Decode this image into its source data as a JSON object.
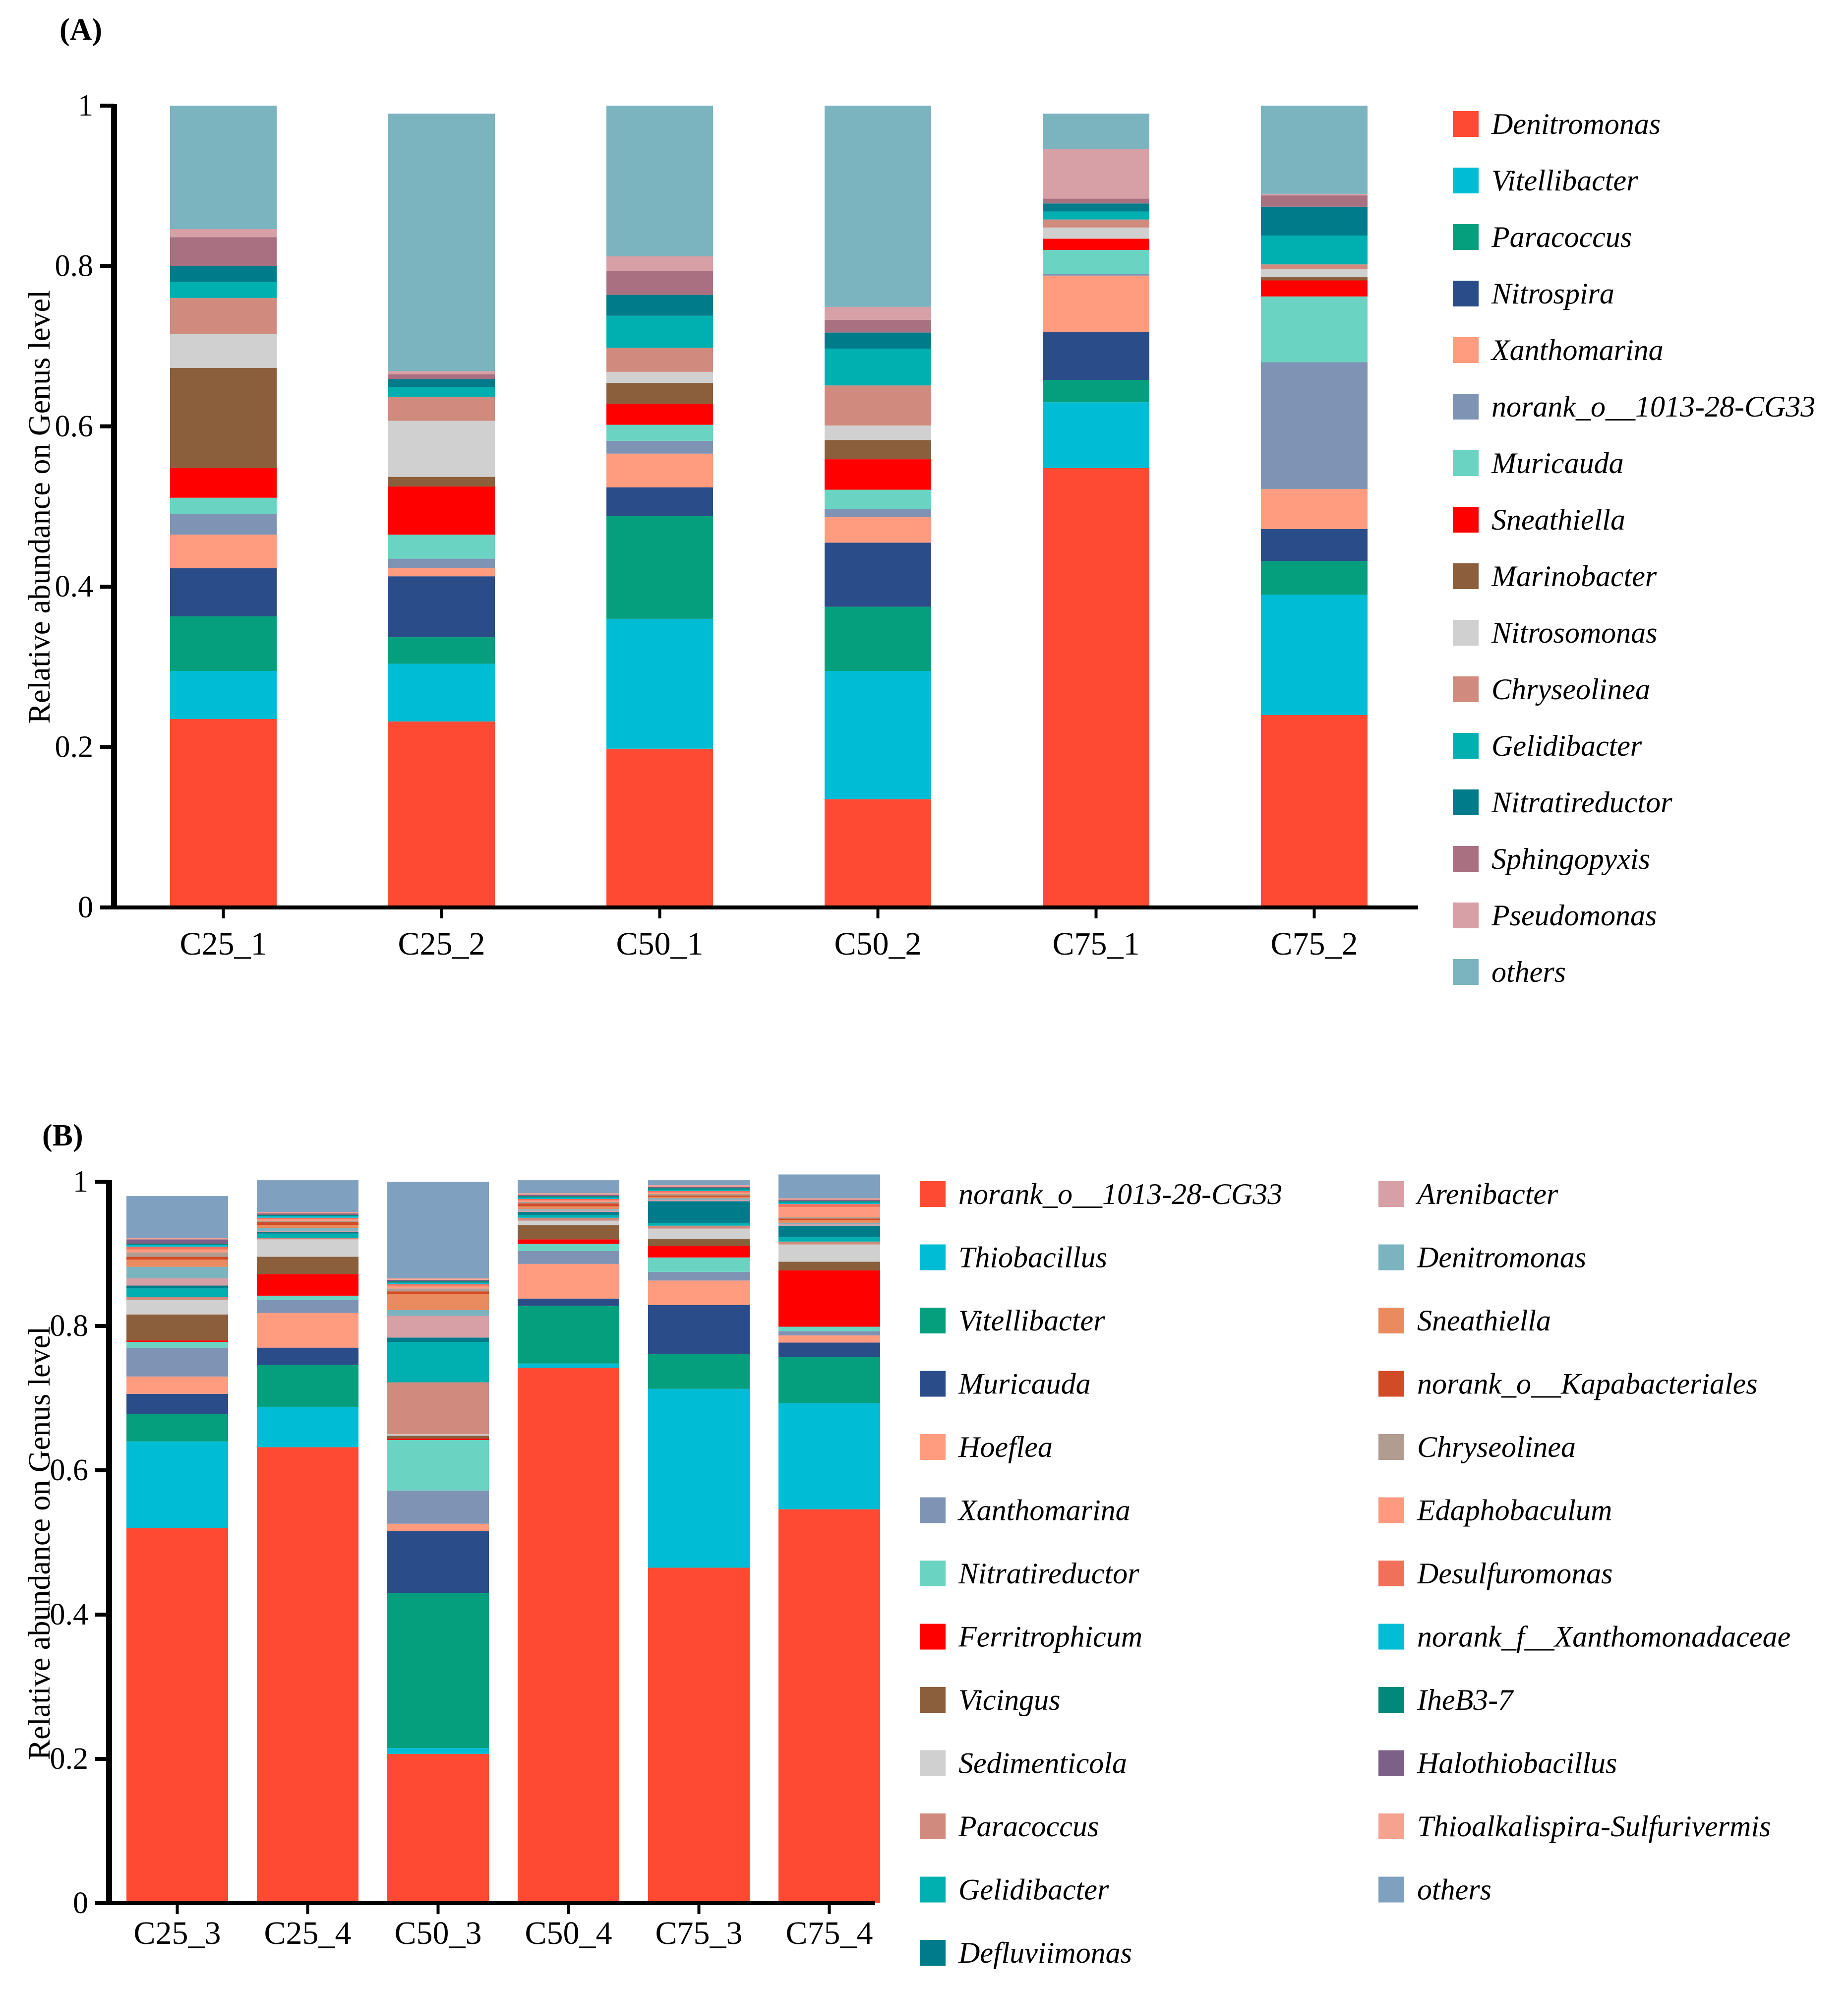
{
  "figure": {
    "panel_a_label": "(A)",
    "panel_b_label": "(B)"
  },
  "chart_data": [
    {
      "type": "bar",
      "stacked": true,
      "panel": "(A)",
      "ylabel": "Relative abundance on Genus level",
      "xlabel": "",
      "ylim": [
        0,
        1
      ],
      "yticks": [
        {
          "value": 0,
          "label": "0"
        },
        {
          "value": 0.2,
          "label": "0.2"
        },
        {
          "value": 0.4,
          "label": "0.4"
        },
        {
          "value": 0.6,
          "label": "0.6"
        },
        {
          "value": 0.8,
          "label": "0.8"
        },
        {
          "value": 1,
          "label": "1"
        }
      ],
      "categories": [
        "C25_1",
        "C25_2",
        "C50_1",
        "C50_2",
        "C75_1",
        "C75_2"
      ],
      "series": [
        {
          "name": "Denitromonas",
          "color": "#FF4A33",
          "values": [
            0.235,
            0.232,
            0.198,
            0.135,
            0.548,
            0.24
          ]
        },
        {
          "name": "Vitellibacter",
          "color": "#00BCD4",
          "values": [
            0.06,
            0.072,
            0.162,
            0.16,
            0.082,
            0.15
          ]
        },
        {
          "name": "Paracoccus",
          "color": "#069F7D",
          "values": [
            0.068,
            0.033,
            0.128,
            0.08,
            0.028,
            0.042
          ]
        },
        {
          "name": "Nitrospira",
          "color": "#2A4D89",
          "values": [
            0.06,
            0.076,
            0.036,
            0.08,
            0.06,
            0.04
          ]
        },
        {
          "name": "Xanthomarina",
          "color": "#FF9C80",
          "values": [
            0.042,
            0.01,
            0.042,
            0.032,
            0.07,
            0.05
          ]
        },
        {
          "name": "norank_o__1013-28-CG33",
          "color": "#7F93B5",
          "values": [
            0.026,
            0.012,
            0.016,
            0.01,
            0.002,
            0.158
          ]
        },
        {
          "name": "Muricauda",
          "color": "#6AD3C2",
          "values": [
            0.02,
            0.03,
            0.02,
            0.024,
            0.03,
            0.082
          ]
        },
        {
          "name": "Sneathiella",
          "color": "#FF0000",
          "values": [
            0.037,
            0.06,
            0.026,
            0.038,
            0.014,
            0.02
          ]
        },
        {
          "name": "Marinobacter",
          "color": "#8B5E3C",
          "values": [
            0.125,
            0.012,
            0.026,
            0.024,
            0.0,
            0.004
          ]
        },
        {
          "name": "Nitrosomonas",
          "color": "#D0D0D0",
          "values": [
            0.042,
            0.07,
            0.014,
            0.018,
            0.014,
            0.01
          ]
        },
        {
          "name": "Chryseolinea",
          "color": "#D08A7E",
          "values": [
            0.045,
            0.03,
            0.03,
            0.05,
            0.01,
            0.006
          ]
        },
        {
          "name": "Gelidibacter",
          "color": "#00AFB0",
          "values": [
            0.02,
            0.012,
            0.04,
            0.046,
            0.01,
            0.036
          ]
        },
        {
          "name": "Nitratireductor",
          "color": "#007B89",
          "values": [
            0.02,
            0.01,
            0.026,
            0.02,
            0.01,
            0.036
          ]
        },
        {
          "name": "Sphingopyxis",
          "color": "#A87080",
          "values": [
            0.036,
            0.006,
            0.03,
            0.016,
            0.006,
            0.014
          ]
        },
        {
          "name": "Pseudomonas",
          "color": "#D79FA6",
          "values": [
            0.01,
            0.004,
            0.018,
            0.016,
            0.062,
            0.002
          ]
        },
        {
          "name": "others",
          "color": "#7BB3BF",
          "values": [
            0.154,
            0.321,
            0.188,
            0.251,
            0.044,
            0.11
          ]
        }
      ]
    },
    {
      "type": "bar",
      "stacked": true,
      "panel": "(B)",
      "ylabel": "Relative abundance on Genus level",
      "xlabel": "",
      "ylim": [
        0,
        1
      ],
      "yticks": [
        {
          "value": 0,
          "label": "0"
        },
        {
          "value": 0.2,
          "label": "0.2"
        },
        {
          "value": 0.4,
          "label": "0.4"
        },
        {
          "value": 0.6,
          "label": "0.6"
        },
        {
          "value": 0.8,
          "label": "0.8"
        },
        {
          "value": 1,
          "label": "1"
        }
      ],
      "categories": [
        "C25_3",
        "C25_4",
        "C50_3",
        "C50_4",
        "C75_3",
        "C75_4"
      ],
      "series": [
        {
          "name": "norank_o__1013-28-CG33",
          "color": "#FF4A33",
          "values": [
            0.52,
            0.632,
            0.207,
            0.742,
            0.465,
            0.546
          ]
        },
        {
          "name": "Thiobacillus",
          "color": "#00BCD4",
          "values": [
            0.12,
            0.056,
            0.008,
            0.006,
            0.248,
            0.147
          ]
        },
        {
          "name": "Vitellibacter",
          "color": "#069F7D",
          "values": [
            0.038,
            0.058,
            0.215,
            0.08,
            0.048,
            0.064
          ]
        },
        {
          "name": "Muricauda",
          "color": "#2A4D89",
          "values": [
            0.028,
            0.024,
            0.086,
            0.01,
            0.068,
            0.02
          ]
        },
        {
          "name": "Hoeflea",
          "color": "#FF9C80",
          "values": [
            0.024,
            0.048,
            0.01,
            0.048,
            0.034,
            0.01
          ]
        },
        {
          "name": "Xanthomarina",
          "color": "#7F93B5",
          "values": [
            0.04,
            0.018,
            0.046,
            0.018,
            0.012,
            0.006
          ]
        },
        {
          "name": "Nitratireductor",
          "color": "#6AD3C2",
          "values": [
            0.008,
            0.006,
            0.07,
            0.01,
            0.02,
            0.006
          ]
        },
        {
          "name": "Ferritrophicum",
          "color": "#FF0000",
          "values": [
            0.002,
            0.03,
            0.002,
            0.006,
            0.016,
            0.078
          ]
        },
        {
          "name": "Vicingus",
          "color": "#8B5E3C",
          "values": [
            0.036,
            0.024,
            0.004,
            0.02,
            0.01,
            0.012
          ]
        },
        {
          "name": "Sedimenticola",
          "color": "#D0D0D0",
          "values": [
            0.02,
            0.024,
            0.002,
            0.006,
            0.014,
            0.024
          ]
        },
        {
          "name": "Paracoccus",
          "color": "#D08A7E",
          "values": [
            0.004,
            0.002,
            0.072,
            0.004,
            0.004,
            0.004
          ]
        },
        {
          "name": "Gelidibacter",
          "color": "#00AFB0",
          "values": [
            0.012,
            0.006,
            0.056,
            0.004,
            0.004,
            0.006
          ]
        },
        {
          "name": "Defluviimonas",
          "color": "#007B89",
          "values": [
            0.004,
            0.002,
            0.006,
            0.004,
            0.03,
            0.016
          ]
        },
        {
          "name": "Arenibacter",
          "color": "#D79FA6",
          "values": [
            0.01,
            0.002,
            0.03,
            0.002,
            0.002,
            0.002
          ]
        },
        {
          "name": "Denitromonas",
          "color": "#7BB3BF",
          "values": [
            0.016,
            0.004,
            0.008,
            0.002,
            0.002,
            0.002
          ]
        },
        {
          "name": "Sneathiella",
          "color": "#E98B5E",
          "values": [
            0.01,
            0.004,
            0.022,
            0.004,
            0.002,
            0.004
          ]
        },
        {
          "name": "norank_o__Kapabacteriales",
          "color": "#D14B26",
          "values": [
            0.004,
            0.004,
            0.004,
            0.004,
            0.002,
            0.002
          ]
        },
        {
          "name": "Chryseolinea",
          "color": "#B09C90",
          "values": [
            0.006,
            0.002,
            0.004,
            0.002,
            0.002,
            0.002
          ]
        },
        {
          "name": "Edaphobaculum",
          "color": "#FF9A80",
          "values": [
            0.004,
            0.002,
            0.004,
            0.002,
            0.002,
            0.014
          ]
        },
        {
          "name": "Desulfuromonas",
          "color": "#F0705A",
          "values": [
            0.004,
            0.002,
            0.002,
            0.002,
            0.002,
            0.004
          ]
        },
        {
          "name": "norank_f__Xanthomonadaceae",
          "color": "#00BCD4",
          "values": [
            0.002,
            0.002,
            0.002,
            0.002,
            0.002,
            0.002
          ]
        },
        {
          "name": "IheB3-7",
          "color": "#00897B",
          "values": [
            0.002,
            0.002,
            0.002,
            0.002,
            0.002,
            0.002
          ]
        },
        {
          "name": "Halothiobacillus",
          "color": "#7B6188",
          "values": [
            0.006,
            0.002,
            0.002,
            0.002,
            0.002,
            0.002
          ]
        },
        {
          "name": "Thioalkalispira-Sulfurivermis",
          "color": "#F5A290",
          "values": [
            0.002,
            0.002,
            0.002,
            0.002,
            0.002,
            0.002
          ]
        },
        {
          "name": "others",
          "color": "#7FA0BF",
          "values": [
            0.058,
            0.044,
            0.134,
            0.018,
            0.007,
            0.033
          ]
        }
      ]
    }
  ]
}
